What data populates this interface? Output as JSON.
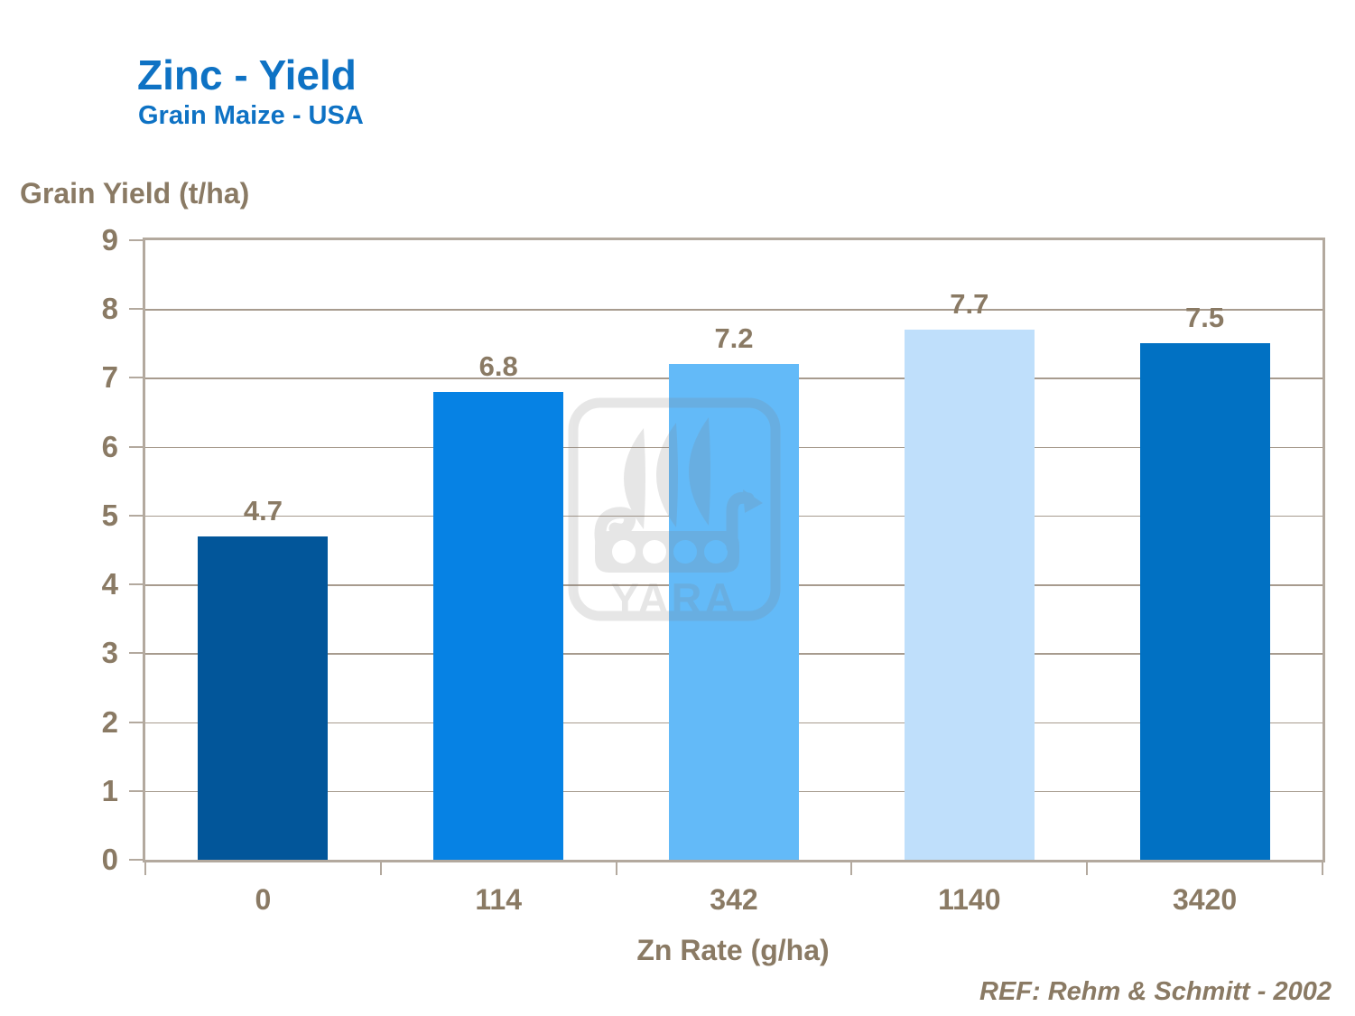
{
  "header": {
    "title": "Zinc - Yield",
    "subtitle": "Grain Maize - USA"
  },
  "footer": {
    "reference": "REF: Rehm & Schmitt - 2002"
  },
  "watermark": {
    "name": "yara-viking-ship-logo",
    "label": "YARA"
  },
  "colors": {
    "title_blue": "#0e72c4",
    "axis_text": "#8a7a64",
    "axis_border": "#b3a99e",
    "gridline": "#a79b8e"
  },
  "chart_data": {
    "type": "bar",
    "title": "Zinc - Yield",
    "subtitle": "Grain Maize - USA",
    "categories": [
      "0",
      "114",
      "342",
      "1140",
      "3420"
    ],
    "values": [
      4.7,
      6.8,
      7.2,
      7.7,
      7.5
    ],
    "value_labels": [
      "4.7",
      "6.8",
      "7.2",
      "7.7",
      "7.5"
    ],
    "bar_colors": [
      "#02569a",
      "#0682e4",
      "#63baf8",
      "#bfdffb",
      "#0171c3"
    ],
    "xlabel": "Zn Rate (g/ha)",
    "ylabel": "Grain Yield (t/ha)",
    "ylim": [
      0,
      9
    ],
    "ytick_step": 1,
    "grid": true,
    "legend": "none"
  }
}
